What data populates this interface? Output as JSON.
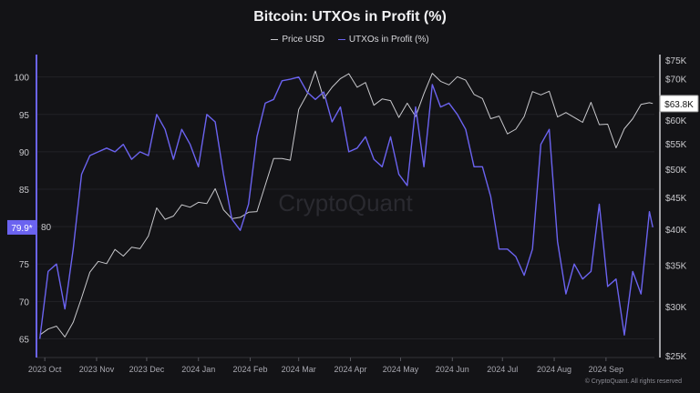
{
  "chart_data": {
    "type": "line",
    "title": "Bitcoin: UTXOs in Profit (%)",
    "legend": [
      "Price USD",
      "UTXOs in Profit (%)"
    ],
    "legend_position": "top",
    "watermark": "CryptoQuant",
    "copyright": "© CryptoQuant. All rights reserved",
    "grid": true,
    "x_ticks": [
      "2023 Oct",
      "2023 Nov",
      "2023 Dec",
      "2024 Jan",
      "2024 Feb",
      "2024 Mar",
      "2024 Apr",
      "2024 May",
      "2024 Jun",
      "2024 Jul",
      "2024 Aug",
      "2024 Sep"
    ],
    "x_tick_dates": [
      "2023-10-01",
      "2023-11-01",
      "2023-12-01",
      "2024-01-01",
      "2024-02-01",
      "2024-03-01",
      "2024-04-01",
      "2024-05-01",
      "2024-06-01",
      "2024-07-01",
      "2024-08-01",
      "2024-09-01"
    ],
    "xlim": [
      "2023-09-26",
      "2024-09-30"
    ],
    "left_axis": {
      "ticks": [
        100,
        95,
        90,
        85,
        80,
        75,
        70,
        65
      ],
      "tick_labels": [
        "100",
        "95",
        "90",
        "85",
        "80",
        "75",
        "70",
        "65"
      ],
      "ylim": [
        62.5,
        103
      ],
      "current_label": "79.9*",
      "color": "#6b63f0"
    },
    "right_axis": {
      "scale": "log",
      "ticks": [
        75000,
        70000,
        60000,
        55000,
        50000,
        45000,
        40000,
        35000,
        30000,
        25000
      ],
      "tick_labels": [
        "$75K",
        "$70K",
        "$60K",
        "$55K",
        "$50K",
        "$45K",
        "$40K",
        "$35K",
        "$30K",
        "$25K"
      ],
      "ylim": [
        25000,
        75000
      ],
      "current_label": "$63.8K"
    },
    "x": [
      "2023-09-28",
      "2023-10-03",
      "2023-10-08",
      "2023-10-13",
      "2023-10-18",
      "2023-10-23",
      "2023-10-28",
      "2023-11-02",
      "2023-11-07",
      "2023-11-12",
      "2023-11-17",
      "2023-11-22",
      "2023-11-27",
      "2023-12-02",
      "2023-12-07",
      "2023-12-12",
      "2023-12-17",
      "2023-12-22",
      "2023-12-27",
      "2024-01-01",
      "2024-01-06",
      "2024-01-11",
      "2024-01-16",
      "2024-01-21",
      "2024-01-26",
      "2024-01-31",
      "2024-02-05",
      "2024-02-10",
      "2024-02-15",
      "2024-02-20",
      "2024-02-25",
      "2024-03-01",
      "2024-03-06",
      "2024-03-11",
      "2024-03-16",
      "2024-03-21",
      "2024-03-26",
      "2024-03-31",
      "2024-04-05",
      "2024-04-10",
      "2024-04-15",
      "2024-04-20",
      "2024-04-25",
      "2024-04-30",
      "2024-05-05",
      "2024-05-10",
      "2024-05-15",
      "2024-05-20",
      "2024-05-25",
      "2024-05-30",
      "2024-06-04",
      "2024-06-09",
      "2024-06-14",
      "2024-06-19",
      "2024-06-24",
      "2024-06-29",
      "2024-07-04",
      "2024-07-09",
      "2024-07-14",
      "2024-07-19",
      "2024-07-24",
      "2024-07-29",
      "2024-08-03",
      "2024-08-08",
      "2024-08-13",
      "2024-08-18",
      "2024-08-23",
      "2024-08-28",
      "2024-09-02",
      "2024-09-07",
      "2024-09-12",
      "2024-09-17",
      "2024-09-22",
      "2024-09-27",
      "2024-09-29"
    ],
    "series": [
      {
        "name": "Price USD",
        "axis": "right",
        "color": "#c8c8cc",
        "values": [
          27000,
          27600,
          27900,
          26800,
          28300,
          31000,
          34100,
          35500,
          35200,
          37100,
          36200,
          37400,
          37200,
          39000,
          43300,
          41500,
          42000,
          43800,
          43400,
          44200,
          44000,
          46500,
          43000,
          41600,
          41800,
          42600,
          42700,
          47100,
          52000,
          52000,
          51700,
          62400,
          66000,
          72000,
          65000,
          67800,
          70000,
          71300,
          67800,
          69000,
          63400,
          64900,
          64500,
          60600,
          63900,
          60800,
          66200,
          71400,
          69300,
          68400,
          70500,
          69600,
          66000,
          65000,
          60300,
          60900,
          57000,
          58000,
          60800,
          66700,
          65900,
          66800,
          60700,
          61700,
          60600,
          59500,
          64100,
          59000,
          59100,
          54100,
          58100,
          60300,
          63600,
          64000,
          63800
        ]
      },
      {
        "name": "UTXOs in Profit (%)",
        "axis": "left",
        "color": "#6b63f0",
        "values": [
          65,
          74,
          75,
          69,
          77,
          87,
          89.5,
          90,
          90.5,
          90,
          91,
          89,
          90,
          89.5,
          95,
          93,
          89,
          93,
          91,
          88,
          95,
          94,
          87,
          81,
          79.5,
          83,
          92,
          96.5,
          97,
          99.5,
          99.7,
          100,
          98,
          97,
          98,
          94,
          96,
          90,
          90.5,
          92,
          89,
          88,
          92,
          87,
          85.5,
          96,
          88,
          99,
          96,
          96.5,
          95,
          93,
          88,
          88,
          84,
          77,
          77,
          76,
          73.5,
          77,
          91,
          93,
          78,
          71,
          75,
          73,
          74,
          83,
          72,
          73,
          65.5,
          74,
          71,
          82,
          79.9
        ]
      }
    ]
  }
}
